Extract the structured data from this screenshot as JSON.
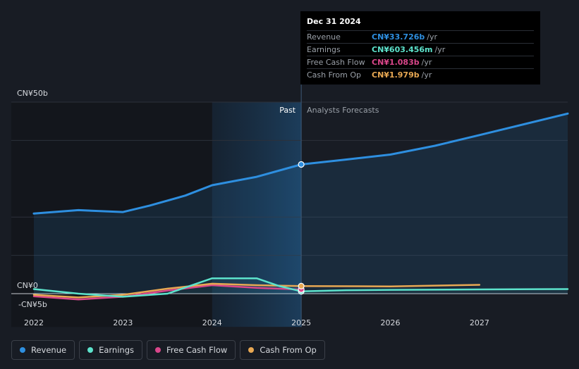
{
  "chart_data": {
    "type": "line",
    "x_unit": "year",
    "xlim": [
      2022,
      2027.99
    ],
    "ylim": [
      -5,
      50
    ],
    "y_tick_labels": [
      {
        "value": 50,
        "label": "CN¥50b"
      },
      {
        "value": 0,
        "label": "CN¥0"
      },
      {
        "value": -5,
        "label": "-CN¥5b"
      }
    ],
    "x_tick_labels": [
      "2022",
      "2023",
      "2024",
      "2025",
      "2026",
      "2027"
    ],
    "divider_x": 2025.0,
    "past_label": "Past",
    "forecast_label": "Analysts Forecasts",
    "series": [
      {
        "name": "Revenue",
        "color": "#2e8fe0",
        "points": [
          [
            2022.0,
            20.9
          ],
          [
            2022.5,
            21.8
          ],
          [
            2023.0,
            21.3
          ],
          [
            2023.3,
            23.0
          ],
          [
            2023.7,
            25.6
          ],
          [
            2024.0,
            28.3
          ],
          [
            2024.5,
            30.5
          ],
          [
            2025.0,
            33.726
          ],
          [
            2025.5,
            35.0
          ],
          [
            2026.0,
            36.3
          ],
          [
            2026.5,
            38.6
          ],
          [
            2027.0,
            41.4
          ],
          [
            2027.99,
            47.0
          ]
        ]
      },
      {
        "name": "Earnings",
        "color": "#5de3cc",
        "points": [
          [
            2022.0,
            1.2
          ],
          [
            2022.5,
            0.0
          ],
          [
            2023.0,
            -0.8
          ],
          [
            2023.5,
            0.0
          ],
          [
            2023.75,
            2.0
          ],
          [
            2024.0,
            4.0
          ],
          [
            2024.5,
            4.0
          ],
          [
            2024.75,
            2.0
          ],
          [
            2025.0,
            0.603
          ],
          [
            2025.5,
            0.9
          ],
          [
            2026.0,
            1.0
          ],
          [
            2027.0,
            1.1
          ],
          [
            2027.99,
            1.2
          ]
        ]
      },
      {
        "name": "Free Cash Flow",
        "color": "#d9468a",
        "points": [
          [
            2022.0,
            -0.7
          ],
          [
            2022.5,
            -1.5
          ],
          [
            2023.0,
            -0.8
          ],
          [
            2023.5,
            0.8
          ],
          [
            2024.0,
            2.2
          ],
          [
            2024.5,
            1.5
          ],
          [
            2025.0,
            1.083
          ]
        ]
      },
      {
        "name": "Cash From Op",
        "color": "#e8a853",
        "points": [
          [
            2022.0,
            -0.3
          ],
          [
            2022.5,
            -1.0
          ],
          [
            2023.0,
            -0.3
          ],
          [
            2023.5,
            1.3
          ],
          [
            2024.0,
            2.6
          ],
          [
            2024.5,
            2.2
          ],
          [
            2025.0,
            1.979
          ],
          [
            2026.0,
            1.9
          ],
          [
            2027.0,
            2.3
          ]
        ]
      }
    ]
  },
  "tooltip": {
    "date": "Dec 31 2024",
    "rows": [
      {
        "label": "Revenue",
        "value": "CN¥33.726b",
        "unit": "/yr",
        "color": "#2e8fe0"
      },
      {
        "label": "Earnings",
        "value": "CN¥603.456m",
        "unit": "/yr",
        "color": "#5de3cc"
      },
      {
        "label": "Free Cash Flow",
        "value": "CN¥1.083b",
        "unit": "/yr",
        "color": "#d9468a"
      },
      {
        "label": "Cash From Op",
        "value": "CN¥1.979b",
        "unit": "/yr",
        "color": "#e8a853"
      }
    ]
  },
  "legend": [
    {
      "label": "Revenue",
      "color": "#2e8fe0"
    },
    {
      "label": "Earnings",
      "color": "#5de3cc"
    },
    {
      "label": "Free Cash Flow",
      "color": "#d9468a"
    },
    {
      "label": "Cash From Op",
      "color": "#e8a853"
    }
  ]
}
